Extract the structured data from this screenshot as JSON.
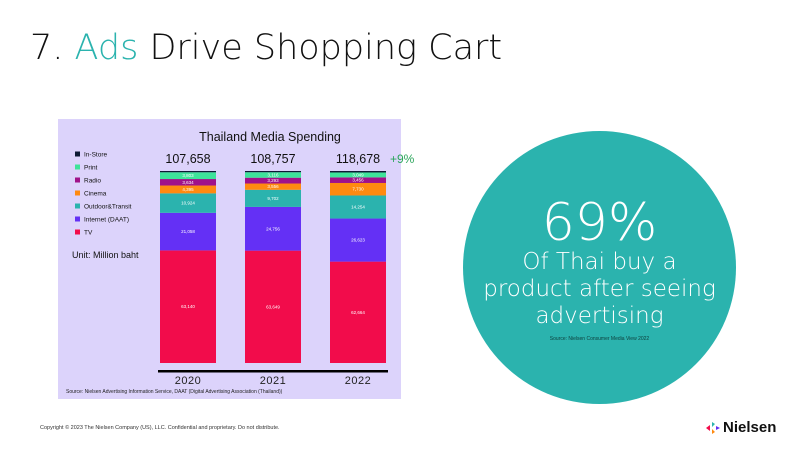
{
  "slide": {
    "title_prefix": "7. ",
    "title_accent": "Ads",
    "title_rest": " Drive Shopping Cart"
  },
  "stat": {
    "value": "69%",
    "text": "Of Thai buy a product after seeing advertising",
    "source": "Source: Nielsen Consumer Media View 2022"
  },
  "footer": {
    "copyright": "Copyright © 2023 The Nielsen Company (US), LLC. Confidential and proprietary. Do not distribute.",
    "logo": "Nielsen"
  },
  "colors": {
    "accent": "#2bb3ae",
    "growth": "#2aa55a"
  },
  "chart_data": {
    "type": "bar",
    "stacked": true,
    "normalized": true,
    "title": "Thailand Media Spending",
    "unit": "Unit: Million baht",
    "categories": [
      "2020",
      "2021",
      "2022"
    ],
    "totals": [
      "107,658",
      "108,757",
      "118,678"
    ],
    "growth_label": "+9%",
    "legend_position": "left",
    "series": [
      {
        "name": "TV",
        "color": "#f20c4b",
        "values": [
          63140,
          63649,
          62664
        ],
        "labels": [
          "63,140",
          "63,649",
          "62,664"
        ]
      },
      {
        "name": "Internet (DAAT)",
        "color": "#6430f5",
        "values": [
          21058,
          24756,
          26623
        ],
        "labels": [
          "21,058",
          "24,756",
          "26,623"
        ]
      },
      {
        "name": "Outdoor&Transit",
        "color": "#2bb3ae",
        "values": [
          10924,
          9702,
          14254
        ],
        "labels": [
          "10,924",
          "9,702",
          "14,254"
        ]
      },
      {
        "name": "Cinema",
        "color": "#ff8a10",
        "values": [
          4395,
          3556,
          7730
        ],
        "labels": [
          "4,395",
          "3,556",
          "7,730"
        ]
      },
      {
        "name": "Radio",
        "color": "#a0128a",
        "values": [
          3634,
          3293,
          3456
        ],
        "labels": [
          "3,634",
          "3,293",
          "3,456"
        ]
      },
      {
        "name": "Print",
        "color": "#3ee39a",
        "values": [
          3803,
          3116,
          3049
        ],
        "labels": [
          "3,803",
          "3,116",
          "3,049"
        ]
      },
      {
        "name": "In-Store",
        "color": "#0d1a33",
        "values": [
          704,
          685,
          902
        ],
        "labels": [
          "",
          "",
          ""
        ]
      }
    ],
    "source": "Source: Nielsen Advertising Information Service, DAAT (Digital Advertising Association (Thailand))"
  }
}
